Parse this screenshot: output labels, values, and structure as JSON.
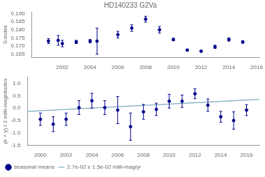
{
  "chart_data": [
    {
      "type": "scatter",
      "title": "HD140233 G2Va",
      "ylabel": "S-index",
      "x": [
        2001.0,
        2001.7,
        2002.0,
        2003.0,
        2004.0,
        2004.5,
        2006.0,
        2007.0,
        2008.0,
        2009.0,
        2010.0,
        2011.0,
        2012.0,
        2013.0,
        2014.0,
        2015.0
      ],
      "values": [
        0.173,
        0.1735,
        0.1715,
        0.1725,
        0.173,
        0.173,
        0.177,
        0.181,
        0.1865,
        0.18,
        0.174,
        0.1675,
        0.1668,
        0.1695,
        0.174,
        0.1725
      ],
      "errors": [
        0.0015,
        0.003,
        0.002,
        0.001,
        0.001,
        0.008,
        0.002,
        0.002,
        0.0018,
        0.002,
        0.0008,
        0.0005,
        0.0005,
        0.001,
        0.001,
        0.0008
      ],
      "color": "#00008B",
      "marker": "circle",
      "xlim": [
        1999.8,
        2016.2
      ],
      "xticks": [
        2002,
        2004,
        2006,
        2008,
        2010,
        2012,
        2014,
        2016
      ],
      "ylim": [
        0.163,
        0.191
      ],
      "yticks": [
        0.165,
        {
          "value": 0.17,
          "label": "0.170"
        },
        0.175,
        {
          "value": 0.18,
          "label": "0.180"
        },
        0.185,
        {
          "value": 0.19,
          "label": "0.190"
        }
      ],
      "grid": false
    },
    {
      "type": "scatter",
      "ylabel": "(b + y) / 2 milli-magnitudes",
      "series": [
        {
          "name": "2.7e-02 ± 1.5e-02 milli-mag/yr",
          "type": "line",
          "line_style": "solid",
          "color": "#7aaabf",
          "x": [
            1999,
            2017
          ],
          "values": [
            -0.135,
            0.351
          ]
        },
        {
          "name": "seasonal means",
          "type": "scatter",
          "marker": "circle",
          "color": "#00008B",
          "x": [
            2000.0,
            2001.0,
            2002.0,
            2003.0,
            2004.0,
            2005.0,
            2006.0,
            2007.0,
            2008.0,
            2009.0,
            2010.0,
            2011.0,
            2012.0,
            2013.0,
            2014.0,
            2015.0,
            2016.0
          ],
          "values": [
            -0.45,
            -0.65,
            -0.45,
            0.02,
            0.3,
            0.02,
            -0.08,
            -0.75,
            -0.15,
            -0.05,
            0.28,
            0.28,
            0.58,
            0.12,
            -0.35,
            -0.5,
            -0.08
          ],
          "errors": [
            0.25,
            0.3,
            0.25,
            0.28,
            0.3,
            0.28,
            0.55,
            0.55,
            0.3,
            0.25,
            0.28,
            0.25,
            0.2,
            0.25,
            0.22,
            0.35,
            0.22
          ]
        }
      ],
      "xlim": [
        1999.0,
        2017.0
      ],
      "xticks": [
        2000,
        2002,
        2004,
        2006,
        2008,
        2010,
        2012,
        2014,
        2016
      ],
      "ylim": [
        -1.5,
        1.25
      ],
      "yticks": [
        {
          "value": -1.5,
          "label": "-1.5"
        },
        {
          "value": -1.0,
          "label": "-1.0"
        },
        {
          "value": -0.5,
          "label": "-0.5"
        },
        {
          "value": 0.0,
          "label": "0.0"
        },
        {
          "value": 0.5,
          "label": "0.5"
        },
        {
          "value": 1.0,
          "label": "1.0"
        }
      ],
      "grid": false,
      "legend": "lower left"
    }
  ]
}
